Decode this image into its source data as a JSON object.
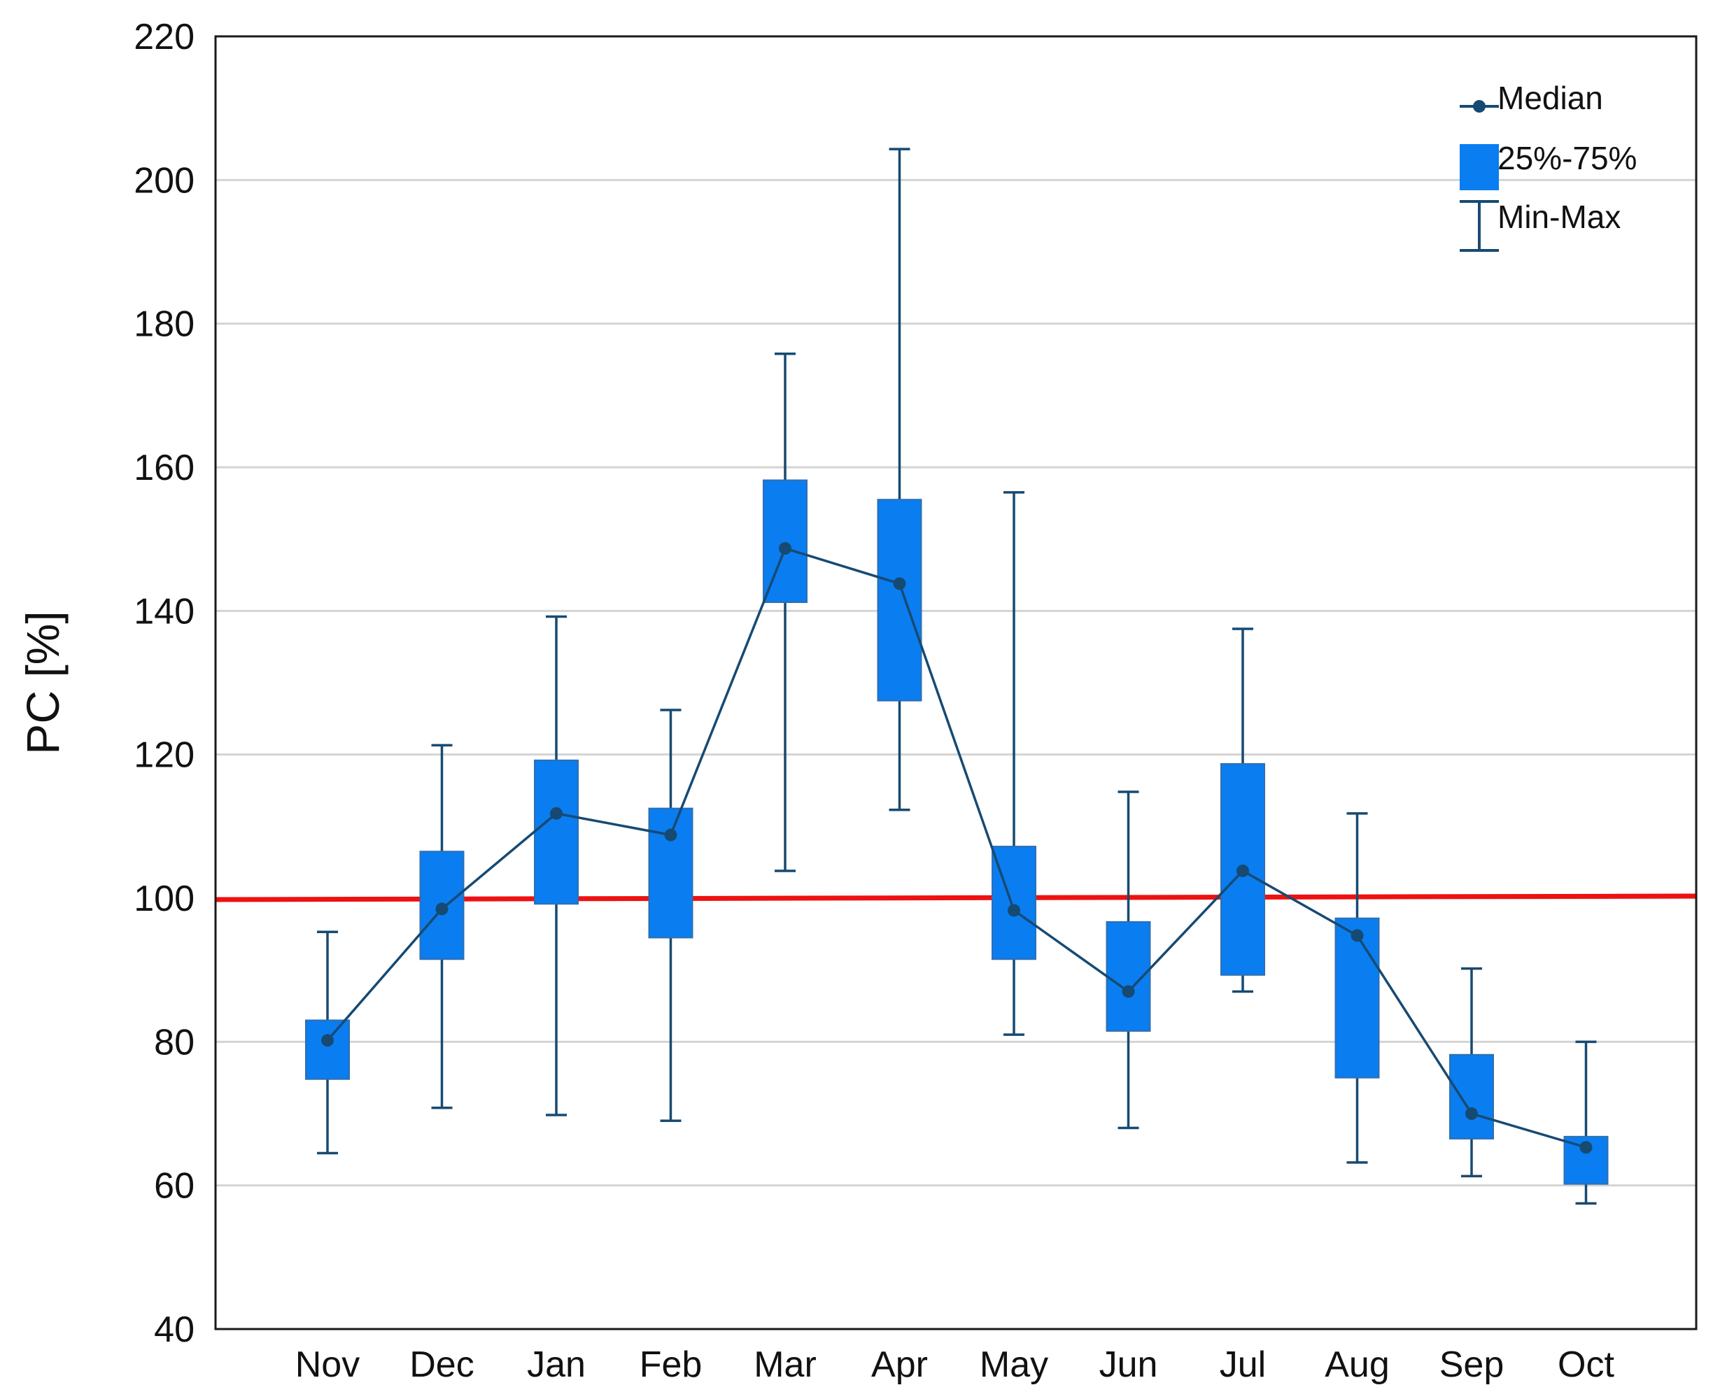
{
  "chart_data": {
    "type": "boxplot",
    "title": "",
    "xlabel": "",
    "ylabel": "PC [%]",
    "ylim": [
      40,
      220
    ],
    "yticks": [
      40,
      60,
      80,
      100,
      120,
      140,
      160,
      180,
      200,
      220
    ],
    "grid": "horizontal",
    "categories": [
      "Nov",
      "Dec",
      "Jan",
      "Feb",
      "Mar",
      "Apr",
      "May",
      "Jun",
      "Jul",
      "Aug",
      "Sep",
      "Oct"
    ],
    "series": [
      {
        "name": "Median",
        "values": [
          80.2,
          98.5,
          111.8,
          108.8,
          148.7,
          143.8,
          98.3,
          87.0,
          103.8,
          94.8,
          70.0,
          65.3
        ]
      },
      {
        "name": "25%-75%",
        "q1": [
          74.8,
          91.5,
          99.2,
          94.5,
          141.2,
          127.5,
          91.5,
          81.5,
          89.3,
          75.0,
          66.5,
          60.2
        ],
        "q3": [
          83.0,
          106.5,
          119.2,
          112.5,
          158.2,
          155.5,
          107.2,
          96.7,
          118.7,
          97.2,
          78.2,
          66.8
        ]
      },
      {
        "name": "Min-Max",
        "min": [
          64.5,
          70.8,
          69.8,
          69.0,
          103.8,
          112.3,
          81.0,
          68.0,
          87.0,
          63.2,
          61.3,
          57.5
        ],
        "max": [
          95.3,
          121.3,
          139.2,
          126.2,
          175.8,
          204.3,
          156.5,
          114.8,
          137.5,
          111.8,
          90.2,
          80.0
        ]
      }
    ],
    "reference_line": {
      "value": 100,
      "color": "#ee1111"
    },
    "legend": [
      "Median",
      "25%-75%",
      "Min-Max"
    ],
    "legend_position": "top-right",
    "colors": {
      "box": "#0a7df0",
      "line": "#174a72",
      "reference": "#ee1111",
      "grid": "#d4d4d4"
    }
  }
}
